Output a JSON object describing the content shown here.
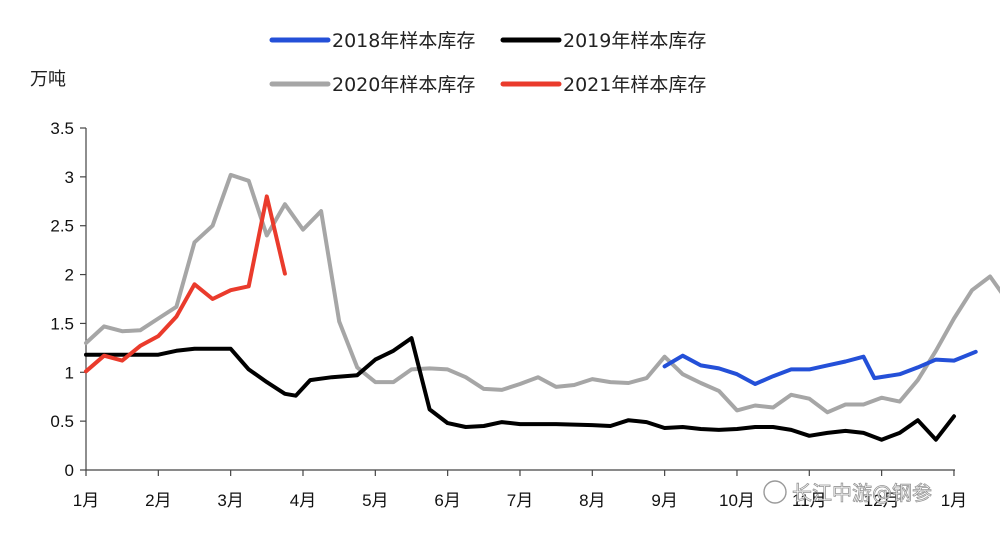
{
  "chart_data": {
    "type": "line",
    "ylabel": "万吨",
    "ylim": [
      0,
      3.5
    ],
    "yticks": [
      "0",
      "0.5",
      "1",
      "1.5",
      "2",
      "2.5",
      "3",
      "3.5"
    ],
    "categories": [
      "1月",
      "2月",
      "3月",
      "4月",
      "5月",
      "6月",
      "7月",
      "8月",
      "9月",
      "10月",
      "11月",
      "12月",
      "1月"
    ],
    "grid": false,
    "legend_position": "top",
    "series": [
      {
        "name": "2018年样本库存",
        "color": "#2450d8",
        "points": [
          [
            8.0,
            1.06
          ],
          [
            8.25,
            1.17
          ],
          [
            8.5,
            1.07
          ],
          [
            8.75,
            1.04
          ],
          [
            9.0,
            0.98
          ],
          [
            9.25,
            0.88
          ],
          [
            9.5,
            0.96
          ],
          [
            9.75,
            1.03
          ],
          [
            10.0,
            1.03
          ],
          [
            10.25,
            1.07
          ],
          [
            10.5,
            1.11
          ],
          [
            10.75,
            1.16
          ],
          [
            10.9,
            0.94
          ],
          [
            11.25,
            0.98
          ],
          [
            11.5,
            1.05
          ],
          [
            11.75,
            1.13
          ],
          [
            12.0,
            1.12
          ],
          [
            12.3,
            1.21
          ]
        ]
      },
      {
        "name": "2019年样本库存",
        "color": "#000000",
        "points": [
          [
            0.0,
            1.18
          ],
          [
            0.5,
            1.18
          ],
          [
            1.0,
            1.18
          ],
          [
            1.25,
            1.22
          ],
          [
            1.5,
            1.24
          ],
          [
            2.0,
            1.24
          ],
          [
            2.25,
            1.03
          ],
          [
            2.5,
            0.9
          ],
          [
            2.75,
            0.78
          ],
          [
            2.9,
            0.76
          ],
          [
            3.1,
            0.92
          ],
          [
            3.4,
            0.95
          ],
          [
            3.75,
            0.97
          ],
          [
            4.0,
            1.13
          ],
          [
            4.25,
            1.22
          ],
          [
            4.5,
            1.35
          ],
          [
            4.75,
            0.62
          ],
          [
            5.0,
            0.48
          ],
          [
            5.25,
            0.44
          ],
          [
            5.5,
            0.45
          ],
          [
            5.75,
            0.49
          ],
          [
            6.0,
            0.47
          ],
          [
            6.5,
            0.47
          ],
          [
            7.0,
            0.46
          ],
          [
            7.25,
            0.45
          ],
          [
            7.5,
            0.51
          ],
          [
            7.75,
            0.49
          ],
          [
            8.0,
            0.43
          ],
          [
            8.25,
            0.44
          ],
          [
            8.5,
            0.42
          ],
          [
            8.75,
            0.41
          ],
          [
            9.0,
            0.42
          ],
          [
            9.25,
            0.44
          ],
          [
            9.5,
            0.44
          ],
          [
            9.75,
            0.41
          ],
          [
            10.0,
            0.35
          ],
          [
            10.25,
            0.38
          ],
          [
            10.5,
            0.4
          ],
          [
            10.75,
            0.38
          ],
          [
            11.0,
            0.31
          ],
          [
            11.25,
            0.38
          ],
          [
            11.5,
            0.51
          ],
          [
            11.75,
            0.31
          ],
          [
            12.0,
            0.55
          ]
        ]
      },
      {
        "name": "2020年样本库存",
        "color": "#a6a6a6",
        "points": [
          [
            0.0,
            1.3
          ],
          [
            0.25,
            1.47
          ],
          [
            0.5,
            1.42
          ],
          [
            0.75,
            1.43
          ],
          [
            1.0,
            1.55
          ],
          [
            1.25,
            1.67
          ],
          [
            1.5,
            2.33
          ],
          [
            1.75,
            2.5
          ],
          [
            2.0,
            3.02
          ],
          [
            2.25,
            2.96
          ],
          [
            2.5,
            2.4
          ],
          [
            2.75,
            2.72
          ],
          [
            3.0,
            2.46
          ],
          [
            3.25,
            2.65
          ],
          [
            3.5,
            1.52
          ],
          [
            3.75,
            1.05
          ],
          [
            4.0,
            0.9
          ],
          [
            4.25,
            0.9
          ],
          [
            4.5,
            1.03
          ],
          [
            4.75,
            1.04
          ],
          [
            5.0,
            1.03
          ],
          [
            5.25,
            0.95
          ],
          [
            5.5,
            0.83
          ],
          [
            5.75,
            0.82
          ],
          [
            6.0,
            0.88
          ],
          [
            6.25,
            0.95
          ],
          [
            6.5,
            0.85
          ],
          [
            6.75,
            0.87
          ],
          [
            7.0,
            0.93
          ],
          [
            7.25,
            0.9
          ],
          [
            7.5,
            0.89
          ],
          [
            7.75,
            0.94
          ],
          [
            8.0,
            1.16
          ],
          [
            8.25,
            0.98
          ],
          [
            8.5,
            0.89
          ],
          [
            8.75,
            0.81
          ],
          [
            9.0,
            0.61
          ],
          [
            9.25,
            0.66
          ],
          [
            9.5,
            0.64
          ],
          [
            9.75,
            0.77
          ],
          [
            10.0,
            0.73
          ],
          [
            10.25,
            0.59
          ],
          [
            10.5,
            0.67
          ],
          [
            10.75,
            0.67
          ],
          [
            11.0,
            0.74
          ],
          [
            11.25,
            0.7
          ],
          [
            11.5,
            0.92
          ],
          [
            11.75,
            1.22
          ],
          [
            12.0,
            1.55
          ],
          [
            12.25,
            1.84
          ],
          [
            12.5,
            1.98
          ],
          [
            12.75,
            1.72
          ]
        ]
      },
      {
        "name": "2021年样本库存",
        "color": "#ea3b2c",
        "points": [
          [
            0.0,
            1.01
          ],
          [
            0.25,
            1.17
          ],
          [
            0.5,
            1.12
          ],
          [
            0.75,
            1.27
          ],
          [
            1.0,
            1.37
          ],
          [
            1.25,
            1.57
          ],
          [
            1.5,
            1.9
          ],
          [
            1.75,
            1.75
          ],
          [
            2.0,
            1.84
          ],
          [
            2.25,
            1.88
          ],
          [
            2.5,
            2.8
          ],
          [
            2.75,
            2.01
          ]
        ]
      }
    ]
  },
  "watermark": "长江中游@钢参"
}
